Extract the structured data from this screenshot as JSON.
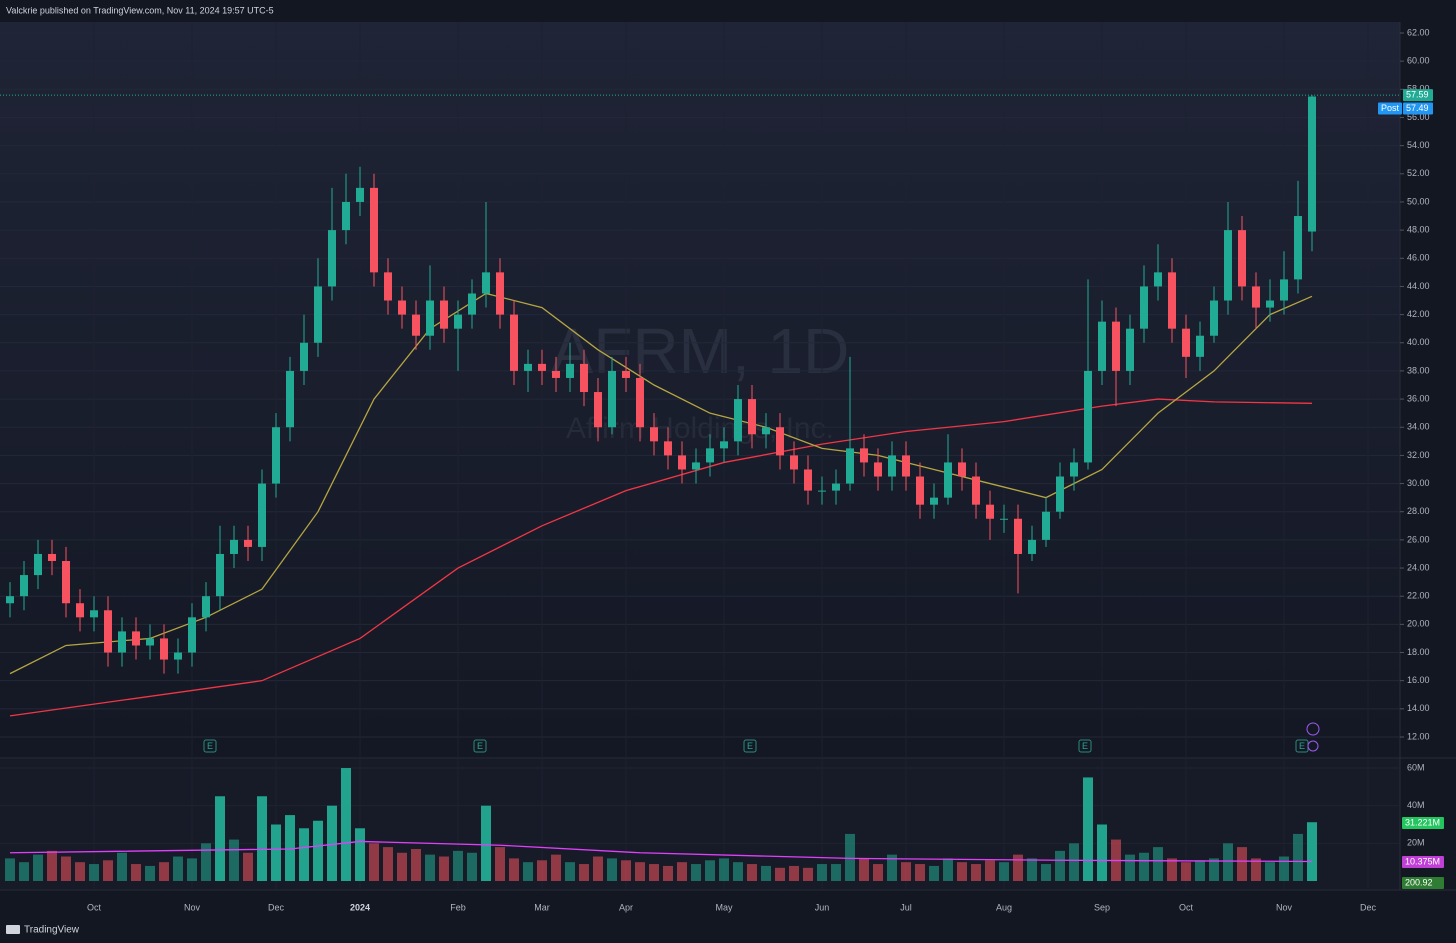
{
  "header": "Valckrie published on TradingView.com, Nov 11, 2024 19:57 UTC-5",
  "footer": "TradingView",
  "earnings_label": "E",
  "chart_data": [
    {
      "type": "candlestick",
      "title": "AFRM, 1D",
      "subtitle": "Affirm Holdings, Inc.",
      "categories": [
        null,
        null,
        null,
        null,
        null,
        null,
        "Oct",
        null,
        null,
        null,
        null,
        null,
        null,
        "Nov",
        null,
        null,
        null,
        null,
        null,
        "Dec",
        null,
        null,
        null,
        null,
        null,
        "2024",
        null,
        null,
        null,
        null,
        null,
        null,
        "Feb",
        null,
        null,
        null,
        null,
        null,
        "Mar",
        null,
        null,
        null,
        null,
        null,
        "Apr",
        null,
        null,
        null,
        null,
        null,
        null,
        "May",
        null,
        null,
        null,
        null,
        null,
        null,
        "Jun",
        null,
        null,
        null,
        null,
        null,
        "Jul",
        null,
        null,
        null,
        null,
        null,
        null,
        "Aug",
        null,
        null,
        null,
        null,
        null,
        null,
        "Sep",
        null,
        null,
        null,
        null,
        null,
        "Oct",
        null,
        null,
        null,
        null,
        null,
        null,
        "Nov",
        null,
        null,
        null,
        null,
        null,
        "Dec",
        null,
        null
      ],
      "open": [
        21.5,
        22,
        23.5,
        25,
        24.5,
        21.5,
        20.5,
        21,
        18,
        19.5,
        18.5,
        19,
        17.5,
        18,
        20.5,
        22,
        25,
        26,
        25.5,
        30,
        34,
        38,
        40,
        44,
        48,
        50,
        51,
        45,
        43,
        42,
        40.5,
        43,
        41,
        42,
        43.5,
        45,
        42,
        38,
        38.5,
        38,
        37.5,
        38.5,
        36.5,
        34,
        38,
        37.5,
        34,
        33,
        32,
        31,
        31.5,
        32.5,
        33,
        36,
        33.5,
        34,
        32,
        31,
        29.5,
        29.5,
        30,
        32.5,
        31.5,
        30.5,
        32,
        30.5,
        28.5,
        29,
        31.5,
        30.5,
        28.5,
        27.5,
        27.5,
        25,
        26,
        28,
        30.5,
        31.5,
        38,
        41.5,
        38,
        41,
        44,
        45,
        41,
        39,
        40.5,
        43,
        48,
        44,
        42.5,
        43,
        44.5,
        47.9,
        null,
        null,
        null,
        null,
        null,
        null
      ],
      "high": [
        23,
        24.5,
        26,
        26,
        25.5,
        22.5,
        22,
        22,
        20.5,
        20.5,
        20,
        20,
        19,
        21.5,
        23,
        27,
        27,
        27,
        31,
        35,
        39,
        42,
        46,
        51,
        52,
        52.5,
        52,
        46,
        44,
        43,
        45.5,
        44,
        43,
        44.5,
        50,
        46,
        43,
        39.5,
        39.5,
        39,
        40,
        39.5,
        37.5,
        39,
        39,
        38.5,
        35,
        34,
        33,
        32.5,
        33.5,
        34,
        37,
        37,
        35,
        35,
        33,
        32,
        30.5,
        31,
        39,
        33.5,
        32.5,
        33,
        33,
        31.5,
        30,
        33.5,
        32.5,
        31.5,
        29.5,
        28.5,
        28.5,
        27,
        29,
        31.5,
        32.5,
        44.5,
        43,
        42.5,
        42,
        45.5,
        47,
        46,
        42,
        41.5,
        44,
        50,
        49,
        45,
        44.5,
        46.5,
        51.5,
        57.59,
        null,
        null,
        null,
        null,
        null,
        null
      ],
      "low": [
        20.5,
        21,
        22.5,
        23.5,
        20.5,
        19.5,
        19.5,
        17,
        17,
        17.5,
        17.5,
        16.5,
        16.5,
        17,
        19.5,
        21,
        24,
        24.5,
        24.5,
        29,
        33,
        37,
        39,
        43,
        47,
        49,
        44,
        42,
        41,
        39.5,
        39.5,
        40,
        38,
        41,
        42.5,
        41,
        37,
        36.5,
        37,
        36.5,
        36.5,
        35.5,
        33,
        33.5,
        36.5,
        33,
        32,
        31,
        30,
        30,
        30.5,
        31.5,
        32,
        32.5,
        32.5,
        31,
        30,
        28.5,
        28.5,
        28.5,
        29.5,
        30.5,
        29.5,
        29.5,
        29.5,
        27.5,
        27.5,
        28.5,
        29.5,
        27.5,
        26,
        26.5,
        22.2,
        24.5,
        25.5,
        27.5,
        29.5,
        31,
        37,
        35.5,
        37,
        40,
        43,
        40,
        37.5,
        38,
        40,
        42,
        43,
        41,
        41.5,
        42,
        43.5,
        46.5,
        null,
        null,
        null,
        null,
        null,
        null
      ],
      "close": [
        22,
        23.5,
        25,
        24.5,
        21.5,
        20.5,
        21,
        18,
        19.5,
        18.5,
        19,
        17.5,
        18,
        20.5,
        22,
        25,
        26,
        25.5,
        30,
        34,
        38,
        40,
        44,
        48,
        50,
        51,
        45,
        43,
        42,
        40.5,
        43,
        41,
        42,
        43.5,
        45,
        42,
        38,
        38.5,
        38,
        37.5,
        38.5,
        36.5,
        34,
        38,
        37.5,
        34,
        33,
        32,
        31,
        31.5,
        32.5,
        33,
        36,
        33.5,
        34,
        32,
        31,
        29.5,
        29.5,
        30,
        32.5,
        31.5,
        30.5,
        32,
        30.5,
        28.5,
        29,
        31.5,
        30.5,
        28.5,
        27.5,
        27.5,
        25,
        26,
        28,
        30.5,
        31.5,
        38,
        41.5,
        38,
        41,
        44,
        45,
        41,
        39,
        40.5,
        43,
        48,
        44,
        42.5,
        43,
        44.5,
        49,
        57.49,
        null,
        null,
        null,
        null,
        null,
        null
      ],
      "up_color": "#22ab94",
      "down_color": "#f7525f",
      "ylim": [
        11,
        63
      ],
      "yticks": [
        {
          "value": 12,
          "label": "12.00"
        },
        {
          "value": 14,
          "label": "14.00"
        },
        {
          "value": 16,
          "label": "16.00"
        },
        {
          "value": 18,
          "label": "18.00"
        },
        {
          "value": 20,
          "label": "20.00"
        },
        {
          "value": 22,
          "label": "22.00"
        },
        {
          "value": 24,
          "label": "24.00"
        },
        {
          "value": 26,
          "label": "26.00"
        },
        {
          "value": 28,
          "label": "28.00"
        },
        {
          "value": 30,
          "label": "30.00"
        },
        {
          "value": 32,
          "label": "32.00"
        },
        {
          "value": 34,
          "label": "34.00"
        },
        {
          "value": 36,
          "label": "36.00"
        },
        {
          "value": 38,
          "label": "38.00"
        },
        {
          "value": 40,
          "label": "40.00"
        },
        {
          "value": 42,
          "label": "42.00"
        },
        {
          "value": 44,
          "label": "44.00"
        },
        {
          "value": 46,
          "label": "46.00"
        },
        {
          "value": 48,
          "label": "48.00"
        },
        {
          "value": 50,
          "label": "50.00"
        },
        {
          "value": 52,
          "label": "52.00"
        },
        {
          "value": 54,
          "label": "54.00"
        },
        {
          "value": 56,
          "label": "56.00"
        },
        {
          "value": 58,
          "label": "58.00"
        },
        {
          "value": 60,
          "label": "60.00"
        },
        {
          "value": 62,
          "label": "62.00"
        }
      ],
      "grid": true,
      "overlays": [
        {
          "color": "#f23645",
          "x": [
            0,
            18,
            25,
            32,
            38,
            44,
            51,
            58,
            64,
            71,
            78,
            82,
            86,
            93
          ],
          "values": [
            13.5,
            16,
            19,
            24,
            27,
            29.5,
            31.5,
            32.8,
            33.7,
            34.4,
            35.5,
            36,
            35.8,
            35.7
          ]
        },
        {
          "color": "#b5a642",
          "x": [
            0,
            4,
            10,
            14,
            18,
            22,
            26,
            30,
            34,
            38,
            42,
            46,
            50,
            54,
            58,
            62,
            66,
            70,
            74,
            78,
            82,
            86,
            90,
            93
          ],
          "values": [
            16.5,
            18.5,
            19,
            20.5,
            22.5,
            28,
            36,
            41,
            43.5,
            42.5,
            39.5,
            37,
            35,
            34,
            32.5,
            32,
            31,
            30,
            29,
            31,
            35,
            38,
            42,
            43.3
          ]
        }
      ],
      "last_value": 57.59,
      "post_label": "Post",
      "post_value": 57.49
    },
    {
      "type": "bar",
      "values": [
        12,
        10,
        14,
        16,
        13,
        10,
        9,
        11,
        15,
        9,
        8,
        10,
        13,
        12,
        20,
        45,
        22,
        15,
        45,
        30,
        35,
        28,
        32,
        40,
        60,
        28,
        20,
        18,
        15,
        17,
        14,
        13,
        16,
        15,
        40,
        18,
        12,
        10,
        11,
        14,
        10,
        9,
        13,
        12,
        11,
        10,
        9,
        8,
        10,
        9,
        11,
        12,
        10,
        9,
        8,
        7,
        8,
        7,
        9,
        9,
        25,
        12,
        9,
        14,
        10,
        9,
        8,
        12,
        10,
        9,
        11,
        10,
        14,
        12,
        9,
        16,
        20,
        55,
        30,
        22,
        14,
        15,
        18,
        12,
        10,
        11,
        12,
        20,
        18,
        12,
        10,
        13,
        25,
        31.221,
        null,
        null,
        null,
        null,
        null,
        null
      ],
      "ylim": [
        0,
        65
      ],
      "yticks": [
        {
          "value": 20,
          "label": "20M"
        },
        {
          "value": 40,
          "label": "40M"
        },
        {
          "value": 60,
          "label": "60M"
        }
      ],
      "ma": {
        "color": "#e040fb",
        "x": [
          0,
          20,
          25,
          35,
          45,
          60,
          75,
          93
        ],
        "values": [
          15,
          17,
          21,
          19,
          15,
          12,
          11,
          10.375
        ]
      },
      "last_value_label": "31.221M",
      "ma_last_label": "10.375M",
      "extra_value": 200.92
    }
  ]
}
